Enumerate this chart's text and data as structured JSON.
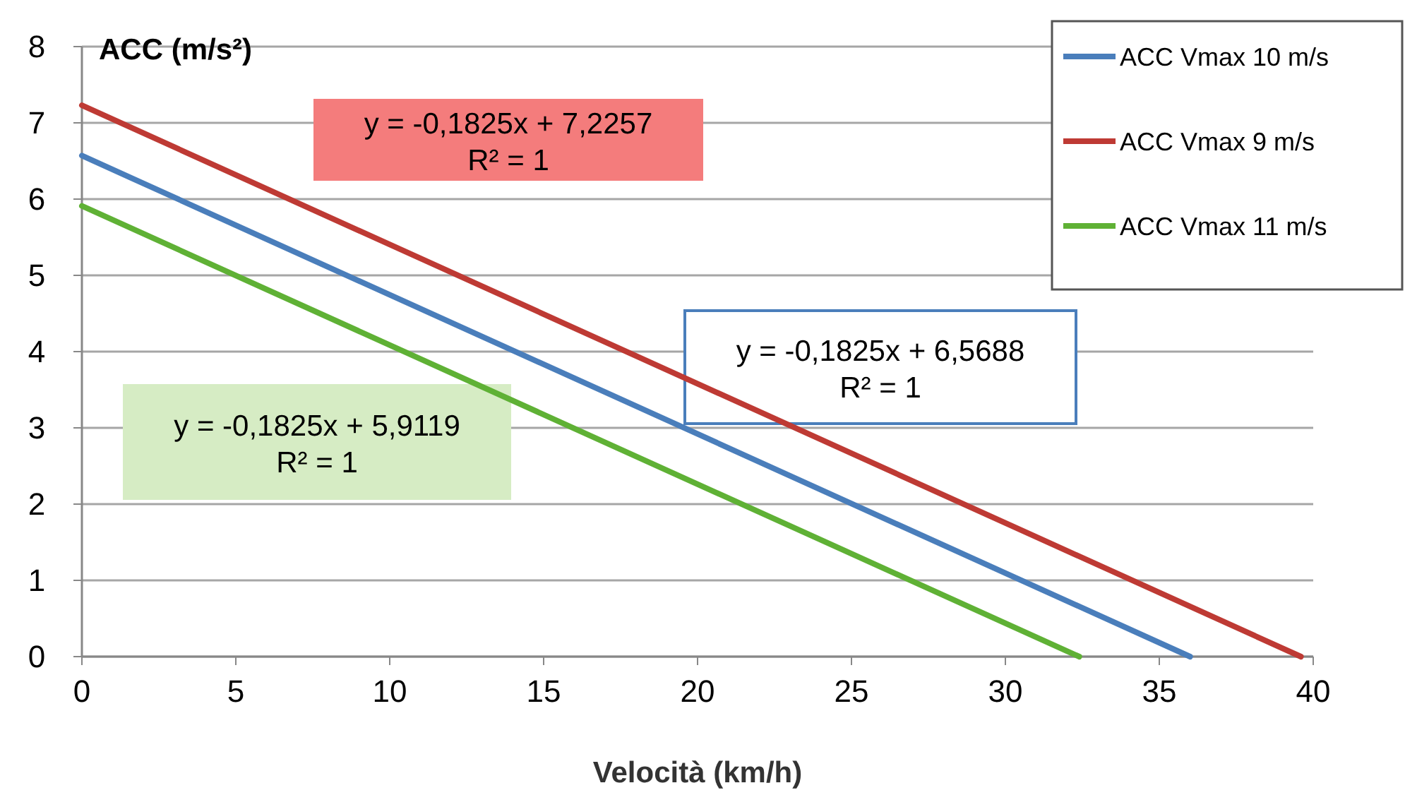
{
  "chart_data": {
    "type": "line",
    "ylabel": "ACC (m/s²)",
    "xlabel": "Velocità (km/h)",
    "xlim": [
      0,
      40
    ],
    "xticks": [
      0,
      5,
      10,
      15,
      20,
      25,
      30,
      35,
      40
    ],
    "ylim": [
      0,
      8
    ],
    "yticks": [
      0,
      1,
      2,
      3,
      4,
      5,
      6,
      7,
      8
    ],
    "grid": "y",
    "legend": "top right",
    "marker": "none",
    "line_style": "solid",
    "series": [
      {
        "name": "ACC Vmax 10 m/s",
        "color": "#4a7ebb",
        "x": [
          0,
          36
        ],
        "values": [
          6.57,
          0
        ]
      },
      {
        "name": "ACC Vmax 9 m/s",
        "color": "#be3a34",
        "x": [
          0,
          39.6
        ],
        "values": [
          7.23,
          0
        ]
      },
      {
        "name": "ACC Vmax 11 m/s",
        "color": "#5fb135",
        "x": [
          0,
          32.4
        ],
        "values": [
          5.91,
          0
        ]
      }
    ],
    "annotations": [
      "y = -0,1825x + 7,2257\nR² = 1",
      "y = -0,1825x + 6,5688\nR² = 1",
      "y = -0,1825x + 5,9119\nR² = 1"
    ]
  }
}
